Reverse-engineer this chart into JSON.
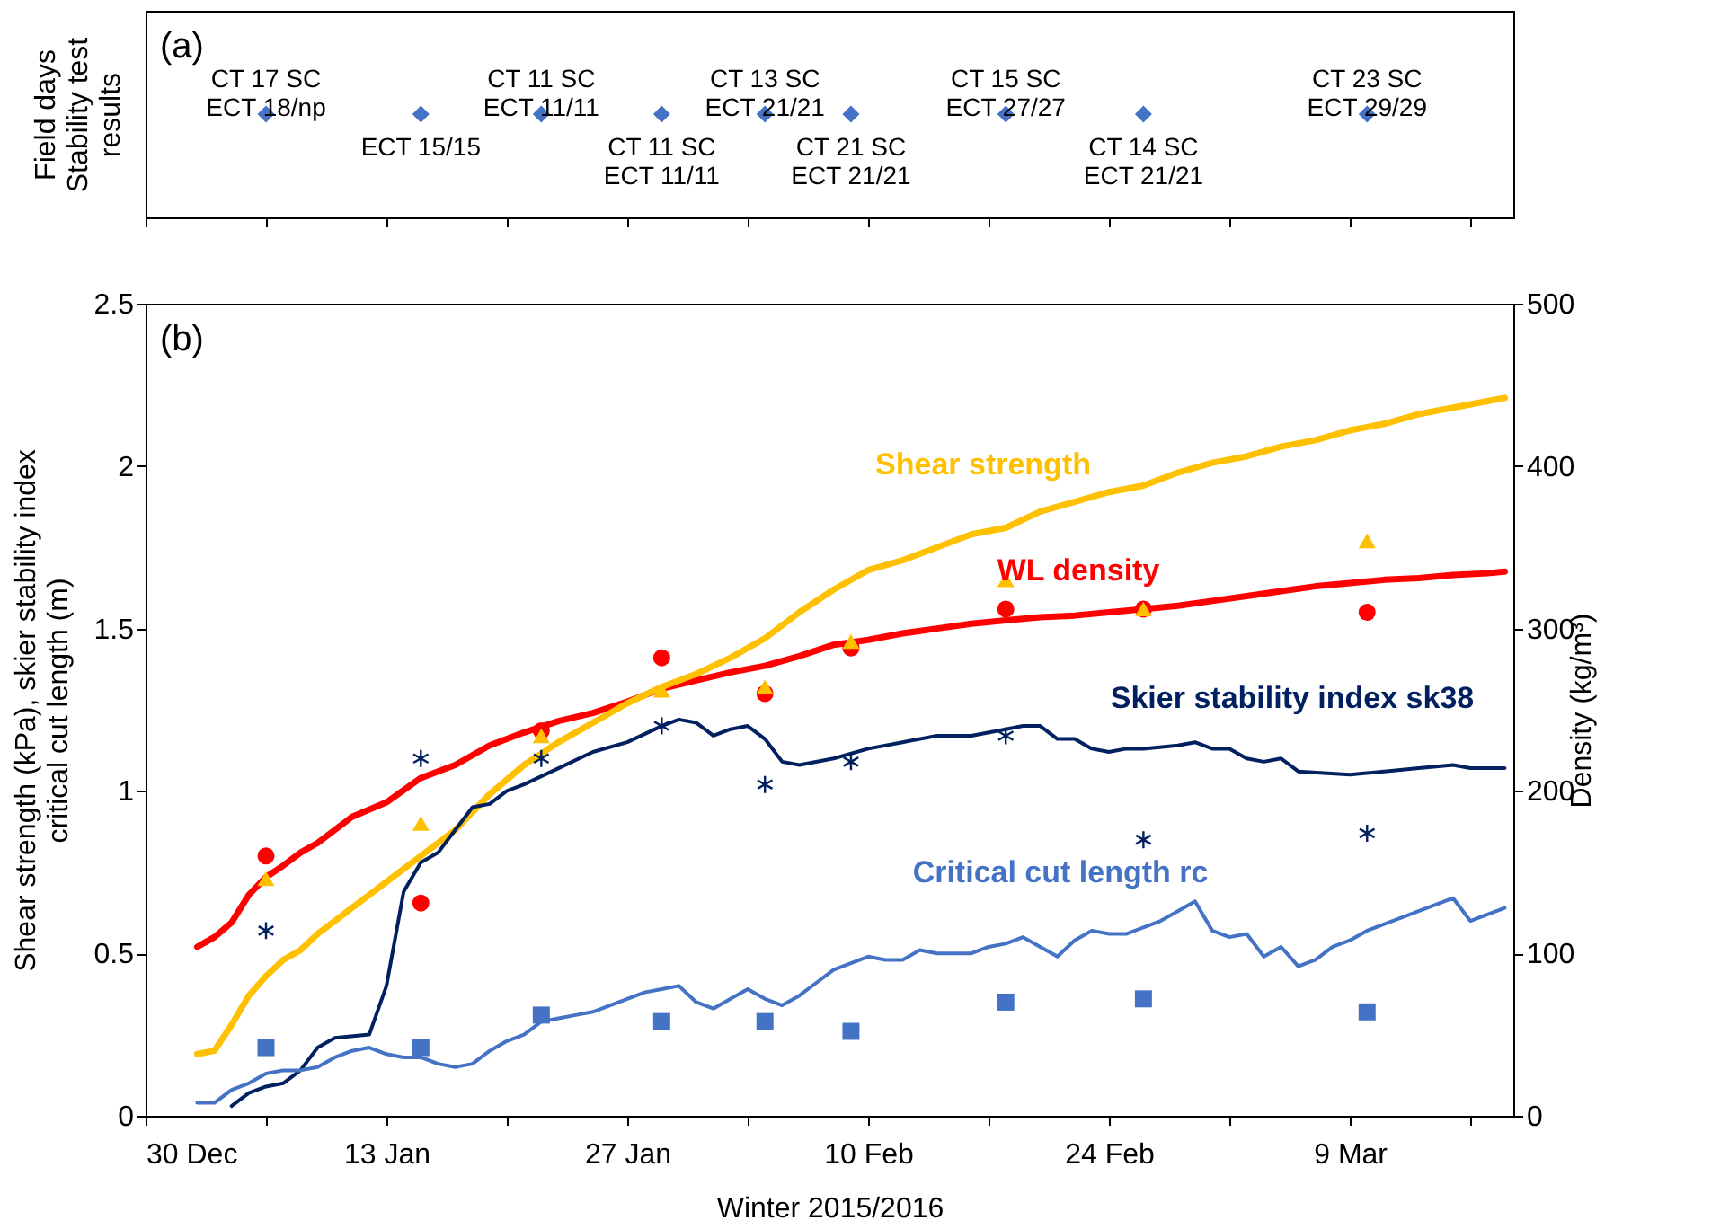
{
  "chart_data": [
    {
      "type": "other",
      "ylabel": "Field days\nStability test\nresults",
      "annotations": [
        "(a)",
        "CT 17 SC\nECT 18/np",
        "ECT 15/15",
        "CT 11 SC\nECT 11/11",
        "CT 11 SC\nECT 11/11",
        "CT 13 SC\nECT 21/21",
        "CT 21 SC\nECT 21/21",
        "CT 15 SC\nECT 27/27",
        "CT 14 SC\nECT 21/21",
        "CT 23 SC\nECT 29/29"
      ]
    },
    {
      "type": "line",
      "xlabel": "Winter 2015/2016",
      "ylabel": "Shear strength (kPa), skier stability index\ncritical cut length (m)",
      "y2label": "Density (kg/m³)",
      "annotations": [
        "(b)"
      ],
      "xlim": [
        "2015-12-30",
        "2016-03-18T12:00"
      ],
      "xticks": [
        {
          "value": "2015-12-30",
          "label": "30 Dec"
        },
        {
          "value": "2016-01-06",
          "label": null
        },
        {
          "value": "2016-01-13",
          "label": "13 Jan"
        },
        {
          "value": "2016-01-20",
          "label": null
        },
        {
          "value": "2016-01-27",
          "label": "27 Jan"
        },
        {
          "value": "2016-02-03",
          "label": null
        },
        {
          "value": "2016-02-10",
          "label": "10 Feb"
        },
        {
          "value": "2016-02-17",
          "label": null
        },
        {
          "value": "2016-02-24",
          "label": "24 Feb"
        },
        {
          "value": "2016-03-02",
          "label": null
        },
        {
          "value": "2016-03-09",
          "label": "9 Mar"
        },
        {
          "value": "2016-03-16",
          "label": null
        }
      ],
      "ylim": [
        0,
        2.5
      ],
      "yticks": [
        0,
        0.5,
        1,
        1.5,
        2,
        2.5
      ],
      "y2lim": [
        0,
        500
      ],
      "y2ticks": [
        0,
        100,
        200,
        300,
        400,
        500
      ],
      "x": [
        "2016-01-02",
        "2016-01-03",
        "2016-01-04",
        "2016-01-05",
        "2016-01-06",
        "2016-01-07",
        "2016-01-08",
        "2016-01-09",
        "2016-01-11",
        "2016-01-13",
        "2016-01-15",
        "2016-01-17",
        "2016-01-19",
        "2016-01-21",
        "2016-01-23",
        "2016-01-25",
        "2016-01-27",
        "2016-01-29",
        "2016-01-31",
        "2016-02-02",
        "2016-02-04",
        "2016-02-06",
        "2016-02-08",
        "2016-02-10",
        "2016-02-12",
        "2016-02-14",
        "2016-02-16",
        "2016-02-18",
        "2016-02-20",
        "2016-02-22",
        "2016-02-24",
        "2016-02-26",
        "2016-02-28",
        "2016-03-01",
        "2016-03-03",
        "2016-03-05",
        "2016-03-07",
        "2016-03-09",
        "2016-03-11",
        "2016-03-13",
        "2016-03-15",
        "2016-03-17",
        "2016-03-18"
      ],
      "series": [
        {
          "name": "Shear strength",
          "type": "line",
          "color": "#ffc000",
          "values": [
            0.19,
            0.2,
            0.28,
            0.37,
            0.43,
            0.48,
            0.51,
            0.56,
            0.64,
            0.72,
            0.8,
            0.88,
            0.99,
            1.08,
            1.15,
            1.21,
            1.27,
            1.32,
            1.36,
            1.41,
            1.47,
            1.55,
            1.62,
            1.68,
            1.71,
            1.75,
            1.79,
            1.81,
            1.86,
            1.89,
            1.92,
            1.94,
            1.98,
            2.01,
            2.03,
            2.06,
            2.08,
            2.11,
            2.13,
            2.16,
            2.18,
            2.2,
            2.21
          ]
        },
        {
          "name": "WL density",
          "type": "line",
          "axis": "y2",
          "color": "#ff0000",
          "values": [
            104,
            110,
            119,
            136,
            147,
            154,
            162,
            168,
            184,
            193,
            208,
            216,
            228,
            236,
            243,
            248,
            255,
            263,
            268,
            273,
            277,
            283,
            290,
            293,
            297,
            300,
            303,
            305,
            307,
            308,
            310,
            312,
            314,
            317,
            320,
            323,
            326,
            328,
            330,
            331,
            333,
            334,
            335
          ]
        },
        {
          "name": "Skier stability index sk38",
          "type": "line",
          "color": "#002060",
          "x": [
            "2016-01-04",
            "2016-01-05",
            "2016-01-06",
            "2016-01-07",
            "2016-01-08",
            "2016-01-09",
            "2016-01-10",
            "2016-01-12",
            "2016-01-13",
            "2016-01-14",
            "2016-01-15",
            "2016-01-16",
            "2016-01-17",
            "2016-01-18",
            "2016-01-19",
            "2016-01-20",
            "2016-01-21",
            "2016-01-23",
            "2016-01-25",
            "2016-01-27",
            "2016-01-29",
            "2016-01-30",
            "2016-01-31",
            "2016-02-01",
            "2016-02-02",
            "2016-02-03",
            "2016-02-04",
            "2016-02-05",
            "2016-02-06",
            "2016-02-08",
            "2016-02-10",
            "2016-02-12",
            "2016-02-14",
            "2016-02-16",
            "2016-02-18",
            "2016-02-19",
            "2016-02-20",
            "2016-02-21",
            "2016-02-22",
            "2016-02-23",
            "2016-02-24",
            "2016-02-25",
            "2016-02-26",
            "2016-02-28",
            "2016-02-29",
            "2016-03-01",
            "2016-03-02",
            "2016-03-03",
            "2016-03-04",
            "2016-03-05",
            "2016-03-06",
            "2016-03-09",
            "2016-03-11",
            "2016-03-13",
            "2016-03-15",
            "2016-03-16",
            "2016-03-18"
          ],
          "values": [
            0.03,
            0.07,
            0.09,
            0.1,
            0.14,
            0.21,
            0.24,
            0.25,
            0.4,
            0.69,
            0.78,
            0.81,
            0.88,
            0.95,
            0.96,
            1.0,
            1.02,
            1.07,
            1.12,
            1.15,
            1.2,
            1.22,
            1.21,
            1.17,
            1.19,
            1.2,
            1.16,
            1.09,
            1.08,
            1.1,
            1.13,
            1.15,
            1.17,
            1.17,
            1.19,
            1.2,
            1.2,
            1.16,
            1.16,
            1.13,
            1.12,
            1.13,
            1.13,
            1.14,
            1.15,
            1.13,
            1.13,
            1.1,
            1.09,
            1.1,
            1.06,
            1.05,
            1.06,
            1.07,
            1.08,
            1.07,
            1.07
          ]
        },
        {
          "name": "Critical cut length rc",
          "type": "line",
          "color": "#4472c4",
          "x": [
            "2016-01-02",
            "2016-01-03",
            "2016-01-04",
            "2016-01-05",
            "2016-01-06",
            "2016-01-07",
            "2016-01-08",
            "2016-01-09",
            "2016-01-10",
            "2016-01-11",
            "2016-01-12",
            "2016-01-13",
            "2016-01-14",
            "2016-01-15",
            "2016-01-16",
            "2016-01-17",
            "2016-01-18",
            "2016-01-19",
            "2016-01-20",
            "2016-01-21",
            "2016-01-22",
            "2016-01-23",
            "2016-01-24",
            "2016-01-25",
            "2016-01-26",
            "2016-01-27",
            "2016-01-28",
            "2016-01-29",
            "2016-01-30",
            "2016-01-31",
            "2016-02-01",
            "2016-02-02",
            "2016-02-03",
            "2016-02-04",
            "2016-02-05",
            "2016-02-06",
            "2016-02-07",
            "2016-02-08",
            "2016-02-09",
            "2016-02-10",
            "2016-02-11",
            "2016-02-12",
            "2016-02-13",
            "2016-02-14",
            "2016-02-15",
            "2016-02-16",
            "2016-02-17",
            "2016-02-18",
            "2016-02-19",
            "2016-02-20",
            "2016-02-21",
            "2016-02-22",
            "2016-02-23",
            "2016-02-24",
            "2016-02-25",
            "2016-02-26",
            "2016-02-27",
            "2016-02-28",
            "2016-02-29",
            "2016-03-01",
            "2016-03-02",
            "2016-03-03",
            "2016-03-04",
            "2016-03-05",
            "2016-03-06",
            "2016-03-07",
            "2016-03-08",
            "2016-03-09",
            "2016-03-10",
            "2016-03-11",
            "2016-03-12",
            "2016-03-13",
            "2016-03-14",
            "2016-03-15",
            "2016-03-16",
            "2016-03-17",
            "2016-03-18"
          ],
          "values": [
            0.04,
            0.04,
            0.08,
            0.1,
            0.13,
            0.14,
            0.14,
            0.15,
            0.18,
            0.2,
            0.21,
            0.19,
            0.18,
            0.18,
            0.16,
            0.15,
            0.16,
            0.2,
            0.23,
            0.25,
            0.29,
            0.3,
            0.31,
            0.32,
            0.34,
            0.36,
            0.38,
            0.39,
            0.4,
            0.35,
            0.33,
            0.36,
            0.39,
            0.36,
            0.34,
            0.37,
            0.41,
            0.45,
            0.47,
            0.49,
            0.48,
            0.48,
            0.51,
            0.5,
            0.5,
            0.5,
            0.52,
            0.53,
            0.55,
            0.52,
            0.49,
            0.54,
            0.57,
            0.56,
            0.56,
            0.58,
            0.6,
            0.63,
            0.66,
            0.57,
            0.55,
            0.56,
            0.49,
            0.52,
            0.46,
            0.48,
            0.52,
            0.54,
            0.57,
            0.59,
            0.61,
            0.63,
            0.65,
            0.67,
            0.6,
            0.62,
            0.64
          ]
        },
        {
          "type": "scatter",
          "marker": "triangle",
          "color": "#ffc000",
          "x": [
            "2016-01-06",
            "2016-01-15",
            "2016-01-22",
            "2016-01-29",
            "2016-02-04",
            "2016-02-09",
            "2016-02-18",
            "2016-02-26",
            "2016-03-10"
          ],
          "values": [
            0.73,
            0.9,
            1.17,
            1.31,
            1.32,
            1.46,
            1.65,
            1.56,
            1.77
          ]
        },
        {
          "type": "scatter",
          "marker": "circle",
          "axis": "y2",
          "color": "#ff0000",
          "x": [
            "2016-01-06",
            "2016-01-15",
            "2016-01-22",
            "2016-01-29",
            "2016-02-04",
            "2016-02-09",
            "2016-02-18",
            "2016-02-26",
            "2016-03-10"
          ],
          "values": [
            160,
            131,
            237,
            282,
            260,
            288,
            312,
            312,
            310
          ]
        },
        {
          "type": "scatter",
          "marker": "cross",
          "color": "#002060",
          "x": [
            "2016-01-06",
            "2016-01-15",
            "2016-01-22",
            "2016-01-29",
            "2016-02-04",
            "2016-02-09",
            "2016-02-18",
            "2016-02-26",
            "2016-03-10"
          ],
          "values": [
            0.57,
            1.1,
            1.1,
            1.2,
            1.02,
            1.09,
            1.17,
            0.85,
            0.87
          ]
        },
        {
          "type": "scatter",
          "marker": "square",
          "color": "#4472c4",
          "x": [
            "2016-01-06",
            "2016-01-15",
            "2016-01-22",
            "2016-01-29",
            "2016-02-04",
            "2016-02-09",
            "2016-02-18",
            "2016-02-26",
            "2016-03-10"
          ],
          "values": [
            0.21,
            0.21,
            0.31,
            0.29,
            0.29,
            0.26,
            0.35,
            0.36,
            0.32
          ]
        }
      ]
    }
  ]
}
